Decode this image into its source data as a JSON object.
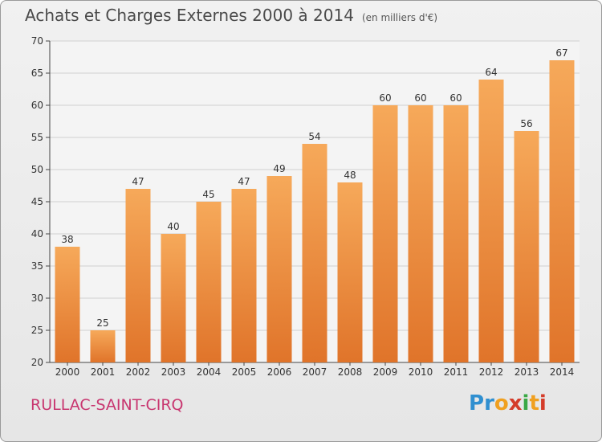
{
  "title": "Achats et Charges Externes 2000 à 2014",
  "unit": "(en milliers d'€)",
  "city": "RULLAC-SAINT-CIRQ",
  "brand": [
    "P",
    "r",
    "o",
    "x",
    "i",
    "t",
    "i"
  ],
  "colors": {
    "bar_top": "#f6a95a",
    "bar_bottom": "#e0742a",
    "city": "#c8356f",
    "brand": [
      "#2f8fd0",
      "#2f8fd0",
      "#f0a020",
      "#d43c2a",
      "#3aa845",
      "#f0a020",
      "#d43c2a"
    ]
  },
  "chart_data": {
    "type": "bar",
    "title": "Achats et Charges Externes 2000 à 2014",
    "categories": [
      "2000",
      "2001",
      "2002",
      "2003",
      "2004",
      "2005",
      "2006",
      "2007",
      "2008",
      "2009",
      "2010",
      "2011",
      "2012",
      "2013",
      "2014"
    ],
    "values": [
      38,
      25,
      47,
      40,
      45,
      47,
      49,
      54,
      48,
      60,
      60,
      60,
      64,
      56,
      67
    ],
    "ylim": [
      20,
      70
    ],
    "yticks": [
      20,
      25,
      30,
      35,
      40,
      45,
      50,
      55,
      60,
      65,
      70
    ],
    "grid": true,
    "data_labels": true
  }
}
